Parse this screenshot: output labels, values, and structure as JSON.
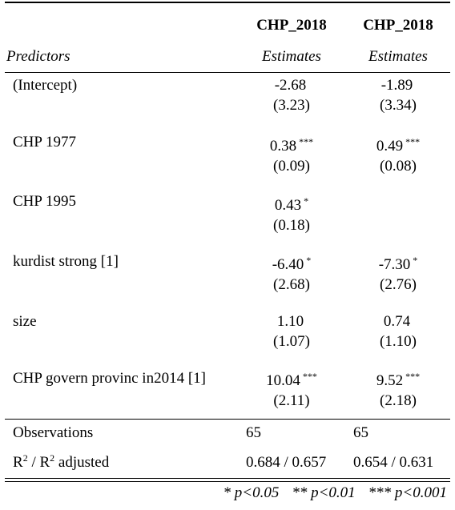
{
  "header": {
    "col1_title": "CHP_2018",
    "col2_title": "CHP_2018",
    "predictors_label": "Predictors",
    "col1_sub": "Estimates",
    "col2_sub": "Estimates"
  },
  "rows": [
    {
      "label": "(Intercept)",
      "c1_est": "-2.68",
      "c1_stars": "",
      "c1_se": "(3.23)",
      "c2_est": "-1.89",
      "c2_stars": "",
      "c2_se": "(3.34)"
    },
    {
      "label": "CHP 1977",
      "c1_est": "0.38",
      "c1_stars": "***",
      "c1_se": "(0.09)",
      "c2_est": "0.49",
      "c2_stars": "***",
      "c2_se": "(0.08)"
    },
    {
      "label": "CHP 1995",
      "c1_est": "0.43",
      "c1_stars": "*",
      "c1_se": "(0.18)",
      "c2_est": "",
      "c2_stars": "",
      "c2_se": ""
    },
    {
      "label": "kurdist strong [1]",
      "c1_est": "-6.40",
      "c1_stars": "*",
      "c1_se": "(2.68)",
      "c2_est": "-7.30",
      "c2_stars": "*",
      "c2_se": "(2.76)"
    },
    {
      "label": "size",
      "c1_est": "1.10",
      "c1_stars": "",
      "c1_se": "(1.07)",
      "c2_est": "0.74",
      "c2_stars": "",
      "c2_se": "(1.10)"
    },
    {
      "label": "CHP govern provinc in2014 [1]",
      "c1_est": "10.04",
      "c1_stars": "***",
      "c1_se": "(2.11)",
      "c2_est": "9.52",
      "c2_stars": "***",
      "c2_se": "(2.18)"
    }
  ],
  "stats": {
    "obs_label": "Observations",
    "obs_c1": "65",
    "obs_c2": "65",
    "r2_label_r": "R",
    "r2_label_sup1": "2",
    "r2_label_mid": " / R",
    "r2_label_sup2": "2",
    "r2_label_end": " adjusted",
    "r2_c1": "0.684 / 0.657",
    "r2_c2": "0.654 / 0.631"
  },
  "footnote": {
    "p1": "* p<0.05",
    "p2": "** p<0.01",
    "p3": "*** p<0.001"
  }
}
